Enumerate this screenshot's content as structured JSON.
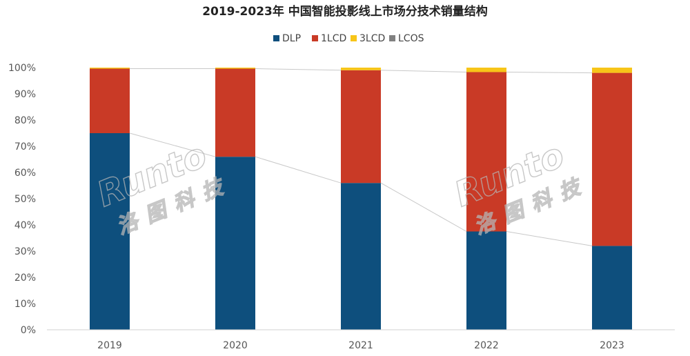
{
  "chart_data": {
    "type": "bar",
    "stacked": true,
    "title": "2019-2023年 中国智能投影线上市场分技术销量结构",
    "categories": [
      "2019",
      "2020",
      "2021",
      "2022",
      "2023"
    ],
    "series": [
      {
        "name": "DLP",
        "color": "#0e4f7d",
        "values": [
          75.0,
          66.0,
          56.0,
          37.5,
          32.0
        ]
      },
      {
        "name": "1LCD",
        "color": "#c93a26",
        "values": [
          24.6,
          33.6,
          43.0,
          60.8,
          66.0
        ]
      },
      {
        "name": "3LCD",
        "color": "#f7c518",
        "values": [
          0.4,
          0.4,
          1.0,
          1.7,
          2.0
        ]
      },
      {
        "name": "LCOS",
        "color": "#808080",
        "values": [
          0.0,
          0.0,
          0.0,
          0.0,
          0.0
        ]
      }
    ],
    "ylim": [
      0,
      100
    ],
    "yticks": [
      0,
      10,
      20,
      30,
      40,
      50,
      60,
      70,
      80,
      90,
      100
    ],
    "ytick_suffix": "%",
    "xlabel": "",
    "ylabel": "",
    "legend_position": "top-center",
    "grid": false,
    "connector_lines": true
  },
  "watermark": {
    "brand": "Runto",
    "cn": "洛图科技"
  }
}
